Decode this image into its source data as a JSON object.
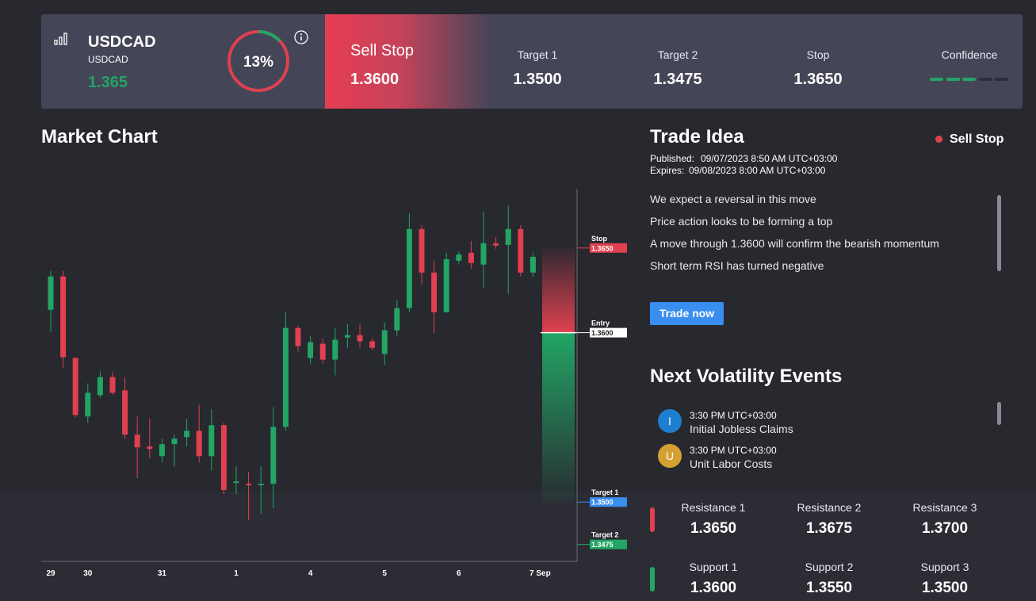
{
  "header": {
    "symbol": "USDCAD",
    "symbol_sub": "USDCAD",
    "price": "1.365",
    "sentiment": {
      "value": 13,
      "label": "13%"
    },
    "order_type": "Sell Stop",
    "order_price": "1.3600",
    "targets": [
      {
        "label": "Target 1",
        "value": "1.3500"
      },
      {
        "label": "Target 2",
        "value": "1.3475"
      },
      {
        "label": "Stop",
        "value": "1.3650"
      }
    ],
    "confidence_label": "Confidence",
    "confidence": {
      "value": 3,
      "max": 5
    }
  },
  "chart_data": {
    "type": "candlestick",
    "title": "Market Chart",
    "categories": [
      "29",
      null,
      null,
      "30",
      null,
      null,
      null,
      null,
      null,
      "31",
      null,
      null,
      null,
      null,
      null,
      "1",
      null,
      null,
      null,
      null,
      null,
      "4",
      null,
      null,
      null,
      null,
      null,
      "5",
      null,
      null,
      null,
      null,
      null,
      "6",
      null,
      null,
      null,
      null,
      null,
      "7 Sep"
    ],
    "open": [
      1.36135,
      1.36332,
      1.35851,
      1.35505,
      1.35631,
      1.35738,
      1.35659,
      1.35398,
      1.35328,
      1.35271,
      1.35342,
      1.35384,
      1.35421,
      1.35271,
      1.35454,
      1.35113,
      1.35108,
      1.35099,
      1.35108,
      1.35444,
      1.36028,
      1.35851,
      1.35935,
      1.35841,
      1.35972,
      1.35986,
      1.35949,
      1.35874,
      1.36014,
      1.36145,
      1.36612,
      1.36355,
      1.36121,
      1.36425,
      1.36472,
      1.36402,
      1.36528,
      1.36518,
      1.36612,
      1.36355
    ],
    "high": [
      1.36364,
      1.36364,
      1.35855,
      1.35701,
      1.35771,
      1.35771,
      1.35734,
      1.35505,
      1.35491,
      1.35374,
      1.35398,
      1.35491,
      1.35575,
      1.35547,
      1.35468,
      1.35211,
      1.35178,
      1.35211,
      1.35561,
      1.36121,
      1.36042,
      1.35981,
      1.35967,
      1.36028,
      1.36051,
      1.36051,
      1.35967,
      1.36061,
      1.36191,
      1.36705,
      1.36635,
      1.36425,
      1.36472,
      1.36481,
      1.36542,
      1.36715,
      1.36565,
      1.36752,
      1.36635,
      1.36472
    ],
    "low": [
      1.36005,
      1.3579,
      1.355,
      1.35468,
      1.35617,
      1.35631,
      1.35374,
      1.35141,
      1.35257,
      1.35234,
      1.35211,
      1.35328,
      1.35234,
      1.35187,
      1.35047,
      1.35047,
      1.34893,
      1.34931,
      1.34963,
      1.35421,
      1.35888,
      1.35818,
      1.35818,
      1.35748,
      1.35911,
      1.35911,
      1.35897,
      1.35809,
      1.35981,
      1.36121,
      1.36285,
      1.35995,
      1.36121,
      1.36402,
      1.36378,
      1.36262,
      1.36495,
      1.36229,
      1.36332,
      1.36332
    ],
    "close": [
      1.36332,
      1.35855,
      1.35514,
      1.35645,
      1.35738,
      1.35645,
      1.35398,
      1.35323,
      1.35314,
      1.35342,
      1.35374,
      1.35421,
      1.35271,
      1.35454,
      1.35071,
      1.35122,
      1.35099,
      1.35108,
      1.35444,
      1.36028,
      1.35921,
      1.35944,
      1.35841,
      1.35958,
      1.35986,
      1.35949,
      1.35911,
      1.36014,
      1.36145,
      1.36612,
      1.36355,
      1.36121,
      1.36434,
      1.36462,
      1.36411,
      1.36528,
      1.36514,
      1.36612,
      1.36355,
      1.36448
    ],
    "up_color": "#22a565",
    "down_color": "#e0404f",
    "ylim": [
      1.3465,
      1.3685
    ],
    "levels": {
      "names": [
        "Stop",
        "Entry",
        "Target 1",
        "Target 2"
      ],
      "values": [
        1.365,
        1.36,
        1.35,
        1.3475
      ],
      "value_labels": [
        "1.3650",
        "1.3600",
        "1.3500",
        "1.3475"
      ],
      "colors": [
        "#e0404f",
        "#ffffff",
        "#3a8ef0",
        "#22a565"
      ]
    }
  },
  "trade_idea": {
    "title": "Trade Idea",
    "tag": "Sell Stop",
    "published_label": "Published:",
    "published": "09/07/2023 8:50 AM UTC+03:00",
    "expires_label": "Expires:",
    "expires": "09/08/2023 8:00 AM UTC+03:00",
    "points": [
      "We expect a reversal in this move",
      "Price action looks to be forming a top",
      "A move through 1.3600 will confirm the bearish momentum",
      "Short term RSI has turned negative"
    ],
    "button": "Trade now"
  },
  "volatility": {
    "title": "Next Volatility Events",
    "events": [
      {
        "icon": "I",
        "color": "#1e7fd0",
        "time": "3:30 PM UTC+03:00",
        "name": "Initial Jobless Claims"
      },
      {
        "icon": "U",
        "color": "#d4a032",
        "time": "3:30 PM UTC+03:00",
        "name": "Unit Labor Costs"
      }
    ]
  },
  "levels": {
    "resistance": [
      {
        "label": "Resistance 1",
        "value": "1.3650"
      },
      {
        "label": "Resistance 2",
        "value": "1.3675"
      },
      {
        "label": "Resistance 3",
        "value": "1.3700"
      }
    ],
    "support": [
      {
        "label": "Support 1",
        "value": "1.3600"
      },
      {
        "label": "Support 2",
        "value": "1.3550"
      },
      {
        "label": "Support 3",
        "value": "1.3500"
      }
    ]
  }
}
